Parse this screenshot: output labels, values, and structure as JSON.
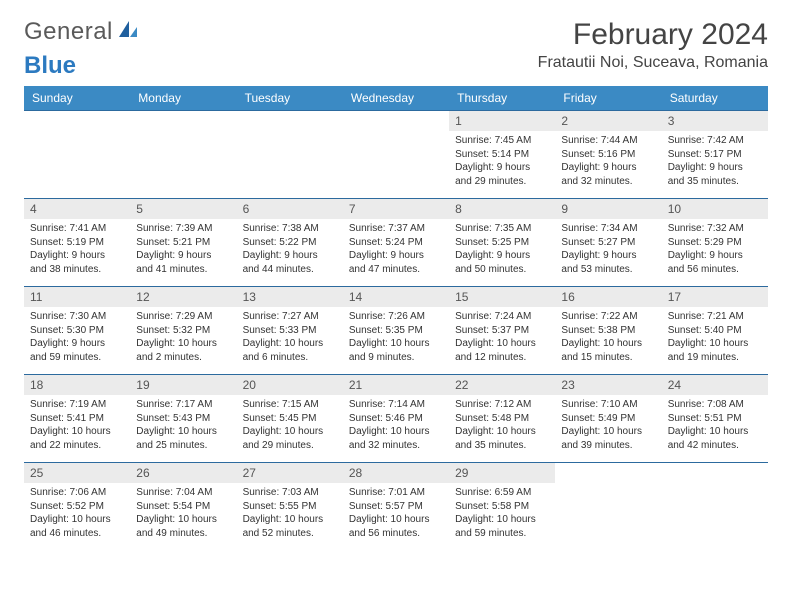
{
  "logo": {
    "text1": "General",
    "text2": "Blue"
  },
  "title": "February 2024",
  "location": "Fratautii Noi, Suceava, Romania",
  "colors": {
    "header_bg": "#3b8ac4",
    "border": "#2c6a9e",
    "daynum_bg": "#ebebeb"
  },
  "weekdays": [
    "Sunday",
    "Monday",
    "Tuesday",
    "Wednesday",
    "Thursday",
    "Friday",
    "Saturday"
  ],
  "weeks": [
    [
      null,
      null,
      null,
      null,
      {
        "n": "1",
        "sr": "7:45 AM",
        "ss": "5:14 PM",
        "dl": "9 hours and 29 minutes."
      },
      {
        "n": "2",
        "sr": "7:44 AM",
        "ss": "5:16 PM",
        "dl": "9 hours and 32 minutes."
      },
      {
        "n": "3",
        "sr": "7:42 AM",
        "ss": "5:17 PM",
        "dl": "9 hours and 35 minutes."
      }
    ],
    [
      {
        "n": "4",
        "sr": "7:41 AM",
        "ss": "5:19 PM",
        "dl": "9 hours and 38 minutes."
      },
      {
        "n": "5",
        "sr": "7:39 AM",
        "ss": "5:21 PM",
        "dl": "9 hours and 41 minutes."
      },
      {
        "n": "6",
        "sr": "7:38 AM",
        "ss": "5:22 PM",
        "dl": "9 hours and 44 minutes."
      },
      {
        "n": "7",
        "sr": "7:37 AM",
        "ss": "5:24 PM",
        "dl": "9 hours and 47 minutes."
      },
      {
        "n": "8",
        "sr": "7:35 AM",
        "ss": "5:25 PM",
        "dl": "9 hours and 50 minutes."
      },
      {
        "n": "9",
        "sr": "7:34 AM",
        "ss": "5:27 PM",
        "dl": "9 hours and 53 minutes."
      },
      {
        "n": "10",
        "sr": "7:32 AM",
        "ss": "5:29 PM",
        "dl": "9 hours and 56 minutes."
      }
    ],
    [
      {
        "n": "11",
        "sr": "7:30 AM",
        "ss": "5:30 PM",
        "dl": "9 hours and 59 minutes."
      },
      {
        "n": "12",
        "sr": "7:29 AM",
        "ss": "5:32 PM",
        "dl": "10 hours and 2 minutes."
      },
      {
        "n": "13",
        "sr": "7:27 AM",
        "ss": "5:33 PM",
        "dl": "10 hours and 6 minutes."
      },
      {
        "n": "14",
        "sr": "7:26 AM",
        "ss": "5:35 PM",
        "dl": "10 hours and 9 minutes."
      },
      {
        "n": "15",
        "sr": "7:24 AM",
        "ss": "5:37 PM",
        "dl": "10 hours and 12 minutes."
      },
      {
        "n": "16",
        "sr": "7:22 AM",
        "ss": "5:38 PM",
        "dl": "10 hours and 15 minutes."
      },
      {
        "n": "17",
        "sr": "7:21 AM",
        "ss": "5:40 PM",
        "dl": "10 hours and 19 minutes."
      }
    ],
    [
      {
        "n": "18",
        "sr": "7:19 AM",
        "ss": "5:41 PM",
        "dl": "10 hours and 22 minutes."
      },
      {
        "n": "19",
        "sr": "7:17 AM",
        "ss": "5:43 PM",
        "dl": "10 hours and 25 minutes."
      },
      {
        "n": "20",
        "sr": "7:15 AM",
        "ss": "5:45 PM",
        "dl": "10 hours and 29 minutes."
      },
      {
        "n": "21",
        "sr": "7:14 AM",
        "ss": "5:46 PM",
        "dl": "10 hours and 32 minutes."
      },
      {
        "n": "22",
        "sr": "7:12 AM",
        "ss": "5:48 PM",
        "dl": "10 hours and 35 minutes."
      },
      {
        "n": "23",
        "sr": "7:10 AM",
        "ss": "5:49 PM",
        "dl": "10 hours and 39 minutes."
      },
      {
        "n": "24",
        "sr": "7:08 AM",
        "ss": "5:51 PM",
        "dl": "10 hours and 42 minutes."
      }
    ],
    [
      {
        "n": "25",
        "sr": "7:06 AM",
        "ss": "5:52 PM",
        "dl": "10 hours and 46 minutes."
      },
      {
        "n": "26",
        "sr": "7:04 AM",
        "ss": "5:54 PM",
        "dl": "10 hours and 49 minutes."
      },
      {
        "n": "27",
        "sr": "7:03 AM",
        "ss": "5:55 PM",
        "dl": "10 hours and 52 minutes."
      },
      {
        "n": "28",
        "sr": "7:01 AM",
        "ss": "5:57 PM",
        "dl": "10 hours and 56 minutes."
      },
      {
        "n": "29",
        "sr": "6:59 AM",
        "ss": "5:58 PM",
        "dl": "10 hours and 59 minutes."
      },
      null,
      null
    ]
  ]
}
